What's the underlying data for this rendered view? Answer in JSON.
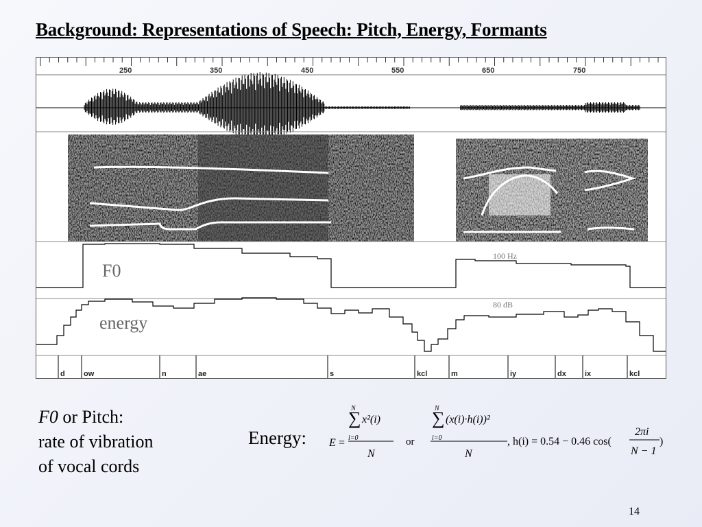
{
  "slide": {
    "title": "Background: Representations of Speech: Pitch, Energy, Formants",
    "page_number": "14"
  },
  "figure": {
    "time_ticks": [
      "250",
      "350",
      "450",
      "550",
      "650",
      "750"
    ],
    "f0_label": "F0",
    "f0_reference": "100 Hz",
    "energy_label": "energy",
    "energy_reference": "80 dB",
    "phones": [
      "d",
      "ow",
      "n",
      "ae",
      "s",
      "kcl",
      "m",
      "iy",
      "dx",
      "ix",
      "kcl"
    ]
  },
  "text": {
    "f0_term": "F0",
    "f0_rest": " or Pitch:",
    "line2": "rate of vibration",
    "line3": "of vocal cords"
  },
  "energy_formula": {
    "label": "Energy:",
    "sum_top": "N",
    "sum_bottom": "i=0",
    "E": "E",
    "eq": "=",
    "x2i": "x²(i)",
    "denominator": "N",
    "or": "or",
    "windowed": "(x(i)·h(i))²",
    "hamming": ", h(i) = 0.54 − 0.46 cos(",
    "two_pi_i": "2πi",
    "n_minus_1": "N − 1",
    "close": ")"
  }
}
